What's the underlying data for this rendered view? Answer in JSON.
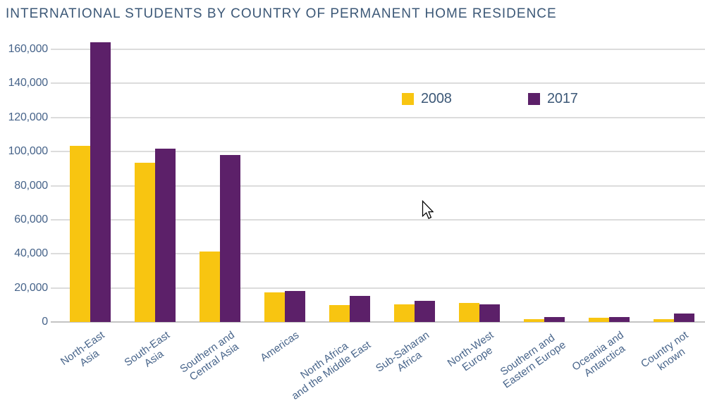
{
  "title": "INTERNATIONAL STUDENTS BY COUNTRY OF PERMANENT HOME RESIDENCE",
  "colors": {
    "background": "#FFFFFF",
    "title_text": "#3C5877",
    "axis_text": "#47648A",
    "gridline": "#DCDCDC",
    "axis_line": "#C3C3C3",
    "series_2008": "#F8C511",
    "series_2017": "#5C2069"
  },
  "legend": {
    "items": [
      "2008",
      "2017"
    ]
  },
  "chart_data": {
    "type": "bar",
    "title": "INTERNATIONAL STUDENTS BY COUNTRY OF PERMANENT HOME RESIDENCE",
    "categories": [
      "North-East Asia",
      "South-East Asia",
      "Southern and Central Asia",
      "Americas",
      "North Africa and the Middle East",
      "Sub-Saharan Africa",
      "North-West Europe",
      "Southern and Eastern Europe",
      "Oceania and Antarctica",
      "Country not known"
    ],
    "category_tick_labels": [
      "North-East\nAsia",
      "South-East\nAsia",
      "Southern and\nCentral Asia",
      "Americas",
      "North Africa\nand the Middle East",
      "Sub-Saharan\nAfrica",
      "North-West\nEurope",
      "Southern and\nEastern Europe",
      "Oceania and\nAntarctica",
      "Country not\nknown"
    ],
    "series": [
      {
        "name": "2008",
        "color": "#F8C511",
        "values": [
          103500,
          93500,
          41500,
          17500,
          10000,
          10500,
          11000,
          1500,
          2500,
          1700
        ]
      },
      {
        "name": "2017",
        "color": "#5C2069",
        "values": [
          164000,
          101500,
          98000,
          18200,
          15500,
          12500,
          10400,
          3000,
          3000,
          4800
        ]
      }
    ],
    "xlabel": "",
    "ylabel": "",
    "ylim": [
      0,
      160000
    ],
    "yticks": [
      0,
      20000,
      40000,
      60000,
      80000,
      100000,
      120000,
      140000,
      160000
    ],
    "ytick_labels": [
      "0",
      "20,000",
      "40,000",
      "60,000",
      "80,000",
      "100,000",
      "120,000",
      "140,000",
      "160,000"
    ],
    "grid": "horizontal",
    "legend_position": "inside-top-right"
  }
}
